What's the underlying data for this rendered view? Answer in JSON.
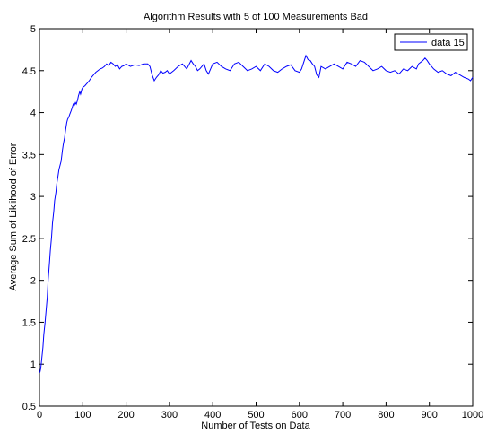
{
  "chart_data": {
    "type": "line",
    "title": "Algorithm Results with 5 of 100 Measurements Bad",
    "xlabel": "Number of Tests on Data",
    "ylabel": "Average Sum of Liklihood of Error",
    "xlim": [
      0,
      1000
    ],
    "ylim": [
      0.5,
      5
    ],
    "xticks": [
      0,
      100,
      200,
      300,
      400,
      500,
      600,
      700,
      800,
      900,
      1000
    ],
    "yticks": [
      0.5,
      1,
      1.5,
      2,
      2.5,
      3,
      3.5,
      4,
      4.5,
      5
    ],
    "grid": false,
    "legend_position": "top-right",
    "series": [
      {
        "name": "data 15",
        "color": "#0000ff",
        "x": [
          1,
          3,
          5,
          8,
          10,
          13,
          15,
          18,
          20,
          23,
          25,
          28,
          30,
          33,
          35,
          38,
          40,
          43,
          45,
          48,
          50,
          53,
          55,
          58,
          60,
          63,
          65,
          68,
          70,
          73,
          75,
          78,
          80,
          83,
          85,
          88,
          90,
          93,
          95,
          98,
          100,
          105,
          110,
          115,
          120,
          125,
          130,
          135,
          140,
          145,
          150,
          155,
          160,
          165,
          170,
          175,
          180,
          185,
          190,
          195,
          200,
          210,
          220,
          230,
          240,
          250,
          255,
          260,
          265,
          270,
          275,
          280,
          285,
          290,
          295,
          300,
          310,
          320,
          330,
          340,
          350,
          355,
          360,
          365,
          370,
          375,
          380,
          385,
          390,
          395,
          400,
          410,
          420,
          430,
          440,
          450,
          460,
          470,
          480,
          490,
          500,
          510,
          520,
          530,
          540,
          550,
          560,
          570,
          580,
          590,
          600,
          605,
          610,
          615,
          620,
          625,
          630,
          635,
          640,
          645,
          650,
          660,
          670,
          680,
          690,
          700,
          710,
          720,
          730,
          740,
          750,
          760,
          770,
          780,
          790,
          800,
          810,
          820,
          830,
          840,
          850,
          860,
          870,
          875,
          880,
          885,
          890,
          895,
          900,
          905,
          910,
          920,
          930,
          940,
          950,
          960,
          970,
          980,
          990,
          995,
          1000
        ],
        "y": [
          0.9,
          0.95,
          1.05,
          1.2,
          1.35,
          1.5,
          1.62,
          1.8,
          2.0,
          2.2,
          2.35,
          2.52,
          2.68,
          2.82,
          2.95,
          3.05,
          3.15,
          3.25,
          3.32,
          3.38,
          3.42,
          3.55,
          3.62,
          3.7,
          3.78,
          3.88,
          3.92,
          3.95,
          3.98,
          4.02,
          4.05,
          4.1,
          4.08,
          4.12,
          4.1,
          4.15,
          4.2,
          4.25,
          4.22,
          4.28,
          4.3,
          4.32,
          4.35,
          4.38,
          4.42,
          4.45,
          4.48,
          4.5,
          4.52,
          4.53,
          4.55,
          4.58,
          4.56,
          4.6,
          4.58,
          4.55,
          4.57,
          4.52,
          4.55,
          4.56,
          4.58,
          4.55,
          4.57,
          4.56,
          4.58,
          4.58,
          4.55,
          4.45,
          4.38,
          4.42,
          4.45,
          4.5,
          4.47,
          4.48,
          4.5,
          4.46,
          4.5,
          4.55,
          4.58,
          4.52,
          4.62,
          4.58,
          4.55,
          4.5,
          4.52,
          4.55,
          4.58,
          4.5,
          4.46,
          4.52,
          4.58,
          4.6,
          4.55,
          4.52,
          4.5,
          4.58,
          4.6,
          4.55,
          4.5,
          4.52,
          4.55,
          4.5,
          4.58,
          4.55,
          4.5,
          4.48,
          4.52,
          4.55,
          4.57,
          4.5,
          4.48,
          4.52,
          4.6,
          4.68,
          4.63,
          4.62,
          4.58,
          4.55,
          4.45,
          4.42,
          4.55,
          4.52,
          4.55,
          4.58,
          4.55,
          4.52,
          4.6,
          4.58,
          4.55,
          4.62,
          4.6,
          4.55,
          4.5,
          4.52,
          4.55,
          4.5,
          4.48,
          4.5,
          4.46,
          4.52,
          4.5,
          4.55,
          4.52,
          4.58,
          4.6,
          4.62,
          4.65,
          4.62,
          4.58,
          4.55,
          4.52,
          4.48,
          4.5,
          4.46,
          4.44,
          4.48,
          4.45,
          4.42,
          4.4,
          4.38,
          4.42
        ]
      }
    ]
  }
}
